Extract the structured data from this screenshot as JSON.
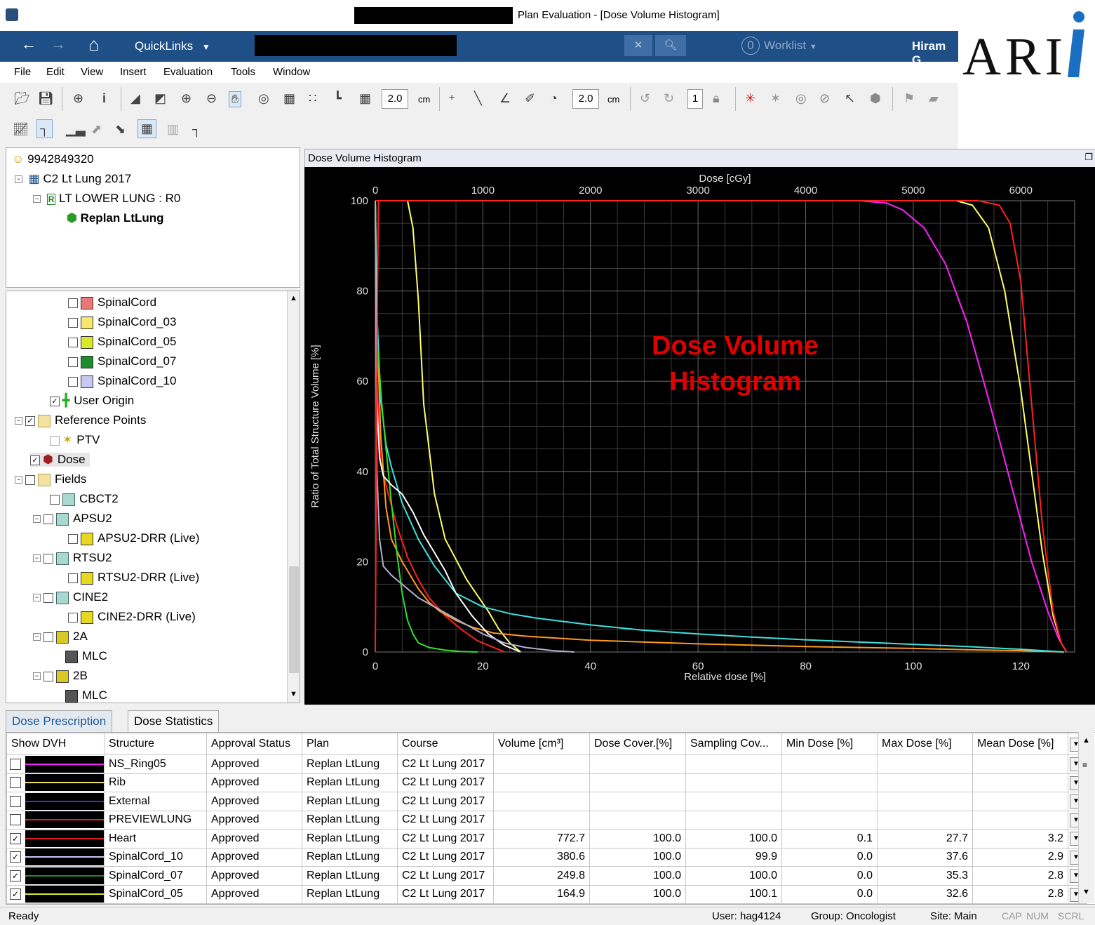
{
  "window": {
    "title": "Plan Evaluation - [Dose Volume Histogram]"
  },
  "nav": {
    "quicklinks": "QuickLinks",
    "worklist_count": "0",
    "worklist": "Worklist",
    "user": "Hiram G"
  },
  "logo": "ARI",
  "menu": [
    "File",
    "Edit",
    "View",
    "Insert",
    "Evaluation",
    "Tools",
    "Window"
  ],
  "toolbar": {
    "thickness1": "2.0",
    "unit1": "cm",
    "thickness2": "2.0",
    "unit2": "cm",
    "page": "1"
  },
  "tree_top": {
    "patient_id": "9942849320",
    "course": "C2 Lt Lung 2017",
    "prescription": "LT LOWER LUNG : R0",
    "plan": "Replan LtLung"
  },
  "tree_bottom": [
    {
      "label": "SpinalCord",
      "color": "#e87878"
    },
    {
      "label": "SpinalCord_03",
      "color": "#f4e86e"
    },
    {
      "label": "SpinalCord_05",
      "color": "#d8e82a"
    },
    {
      "label": "SpinalCord_07",
      "color": "#1c8c2c"
    },
    {
      "label": "SpinalCord_10",
      "color": "#c8c8f4"
    },
    {
      "label": "User Origin"
    },
    {
      "label": "Reference Points"
    },
    {
      "label": "PTV"
    },
    {
      "label": "Dose"
    },
    {
      "label": "Fields"
    },
    {
      "label": "CBCT2"
    },
    {
      "label": "APSU2"
    },
    {
      "label": "APSU2-DRR (Live)"
    },
    {
      "label": "RTSU2"
    },
    {
      "label": "RTSU2-DRR (Live)"
    },
    {
      "label": "CINE2"
    },
    {
      "label": "CINE2-DRR (Live)"
    },
    {
      "label": "2A"
    },
    {
      "label": "MLC"
    },
    {
      "label": "2B"
    },
    {
      "label": "MLC"
    }
  ],
  "dvh_panel": {
    "title": "Dose Volume Histogram",
    "overlay": [
      "Dose Volume",
      "Histogram"
    ],
    "overlay_color": "#e00000"
  },
  "chart_data": {
    "type": "line",
    "title": "",
    "xlabel": "Relative dose [%]",
    "x2label": "Dose [cGy]",
    "ylabel": "Ratio of Total Structure Volume [%]",
    "xlim": [
      0,
      130
    ],
    "ylim": [
      0,
      100
    ],
    "x_ticks": [
      0,
      20,
      40,
      60,
      80,
      100,
      120
    ],
    "x2_ticks": [
      0,
      1000,
      2000,
      3000,
      4000,
      5000,
      6000
    ],
    "y_ticks": [
      0,
      20,
      40,
      60,
      80,
      100
    ],
    "grid": true,
    "series": [
      {
        "color": "#ff20ff",
        "x": [
          0,
          90,
          95,
          98,
          102,
          106,
          110,
          114,
          118,
          122,
          125,
          127,
          128.5
        ],
        "y": [
          100,
          100,
          99.5,
          98,
          94,
          86,
          73,
          56,
          38,
          20,
          9,
          3,
          0
        ]
      },
      {
        "color": "#ffff66",
        "x": [
          0,
          6,
          7,
          8,
          9,
          11,
          13,
          17,
          21,
          23,
          25,
          27
        ],
        "y": [
          100,
          100,
          94,
          78,
          55,
          35,
          25,
          16,
          9,
          5,
          2,
          0
        ]
      },
      {
        "color": "#ffff66",
        "x": [
          0,
          108,
          111,
          114,
          117,
          120,
          122,
          124,
          126,
          127.5,
          128.5
        ],
        "y": [
          100,
          100,
          99,
          94,
          80,
          58,
          40,
          22,
          8,
          2,
          0
        ]
      },
      {
        "color": "#ff2020",
        "x": [
          0,
          112,
          116,
          118,
          120,
          122,
          124,
          126,
          127.5,
          128.5
        ],
        "y": [
          100,
          100,
          99,
          95,
          82,
          55,
          28,
          9,
          2,
          0
        ]
      },
      {
        "color": "#ff2020",
        "x": [
          0,
          0.3,
          1,
          2,
          4,
          6,
          8,
          10,
          13,
          16,
          19,
          22,
          24
        ],
        "y": [
          100,
          60,
          42,
          37,
          28,
          21,
          16,
          12,
          8,
          5,
          2.5,
          1,
          0
        ]
      },
      {
        "color": "#ff9a20",
        "x": [
          0,
          0.5,
          1,
          2,
          3,
          5,
          8,
          10,
          12,
          15,
          18,
          22,
          28,
          40,
          60,
          80,
          100,
          110,
          120,
          128
        ],
        "y": [
          100,
          66,
          48,
          32,
          25,
          20,
          14,
          11,
          9,
          7,
          5.5,
          4.2,
          3.5,
          2.6,
          1.8,
          1.2,
          0.8,
          0.5,
          0.3,
          0
        ]
      },
      {
        "color": "#40e0e0",
        "x": [
          0,
          0.3,
          1,
          2,
          3,
          5,
          8,
          11,
          15,
          20,
          25,
          30,
          40,
          50,
          60,
          70,
          80,
          90,
          100,
          110,
          120,
          128
        ],
        "y": [
          100,
          75,
          56,
          46,
          41,
          33,
          25,
          19,
          13,
          10,
          8.5,
          7.5,
          6,
          4.8,
          4,
          3.3,
          2.7,
          2.2,
          1.7,
          1.2,
          0.6,
          0
        ]
      },
      {
        "color": "#30e030",
        "x": [
          0,
          0.2,
          0.6,
          1.2,
          2,
          3,
          4,
          5,
          6,
          7,
          8,
          10,
          13,
          16,
          19
        ],
        "y": [
          100,
          70,
          65,
          55,
          45,
          33,
          22,
          13,
          7,
          4,
          2,
          1,
          0.4,
          0.1,
          0
        ]
      },
      {
        "color": "#ffffff",
        "x": [
          0,
          0.3,
          0.8,
          1.5,
          3,
          5,
          7,
          9,
          11,
          13,
          15,
          18,
          21,
          24,
          27
        ],
        "y": [
          100,
          55,
          43,
          39,
          37,
          35,
          31,
          26,
          22,
          18,
          13,
          8,
          4,
          1.5,
          0
        ]
      },
      {
        "color": "#b0b0d0",
        "x": [
          0,
          0.3,
          0.8,
          1.5,
          3,
          5,
          8,
          11,
          14,
          17,
          20,
          24,
          28,
          33,
          37
        ],
        "y": [
          100,
          40,
          25,
          19,
          17,
          15,
          12,
          10,
          8,
          6,
          4,
          2,
          1,
          0.3,
          0
        ]
      },
      {
        "color": "#ff2020",
        "x": [
          0,
          0.4,
          0.6
        ],
        "y": [
          0,
          80,
          100
        ]
      }
    ]
  },
  "tabs": [
    "Dose Prescription",
    "Dose Statistics"
  ],
  "table": {
    "columns": [
      "Show DVH",
      "Structure",
      "Approval Status",
      "Plan",
      "Course",
      "Volume [cm³]",
      "Dose Cover.[%]",
      "Sampling Cov...",
      "Min Dose [%]",
      "Max Dose [%]",
      "Mean Dose [%]"
    ],
    "rows": [
      {
        "checked": false,
        "color": "#ff20ff",
        "structure": "NS_Ring05",
        "status": "Approved",
        "plan": "Replan LtLung",
        "course": "C2 Lt Lung 2017",
        "volume": "",
        "cover": "",
        "sampling": "",
        "min": "",
        "max": "",
        "mean": ""
      },
      {
        "checked": false,
        "color": "#e8e060",
        "structure": "Rib",
        "status": "Approved",
        "plan": "Replan LtLung",
        "course": "C2 Lt Lung 2017",
        "volume": "",
        "cover": "",
        "sampling": "",
        "min": "",
        "max": "",
        "mean": ""
      },
      {
        "checked": false,
        "color": "#3030ff",
        "structure": "External",
        "status": "Approved",
        "plan": "Replan LtLung",
        "course": "C2 Lt Lung 2017",
        "volume": "",
        "cover": "",
        "sampling": "",
        "min": "",
        "max": "",
        "mean": ""
      },
      {
        "checked": false,
        "color": "#e02020",
        "structure": "PREVIEWLUNG",
        "status": "Approved",
        "plan": "Replan LtLung",
        "course": "C2 Lt Lung 2017",
        "volume": "",
        "cover": "",
        "sampling": "",
        "min": "",
        "max": "",
        "mean": ""
      },
      {
        "checked": true,
        "color": "#e02020",
        "structure": "Heart",
        "status": "Approved",
        "plan": "Replan LtLung",
        "course": "C2 Lt Lung 2017",
        "volume": "772.7",
        "cover": "100.0",
        "sampling": "100.0",
        "min": "0.1",
        "max": "27.7",
        "mean": "3.2"
      },
      {
        "checked": true,
        "color": "#c8c8f4",
        "structure": "SpinalCord_10",
        "status": "Approved",
        "plan": "Replan LtLung",
        "course": "C2 Lt Lung 2017",
        "volume": "380.6",
        "cover": "100.0",
        "sampling": "99.9",
        "min": "0.0",
        "max": "37.6",
        "mean": "2.9"
      },
      {
        "checked": true,
        "color": "#1c8c2c",
        "structure": "SpinalCord_07",
        "status": "Approved",
        "plan": "Replan LtLung",
        "course": "C2 Lt Lung 2017",
        "volume": "249.8",
        "cover": "100.0",
        "sampling": "100.0",
        "min": "0.0",
        "max": "35.3",
        "mean": "2.8"
      },
      {
        "checked": true,
        "color": "#d8e82a",
        "structure": "SpinalCord_05",
        "status": "Approved",
        "plan": "Replan LtLung",
        "course": "C2 Lt Lung 2017",
        "volume": "164.9",
        "cover": "100.0",
        "sampling": "100.1",
        "min": "0.0",
        "max": "32.6",
        "mean": "2.8"
      }
    ]
  },
  "status": {
    "ready": "Ready",
    "user": "User: hag4124",
    "group": "Group: Oncologist",
    "site": "Site: Main",
    "cap": "CAP",
    "num": "NUM",
    "scrl": "SCRL"
  }
}
